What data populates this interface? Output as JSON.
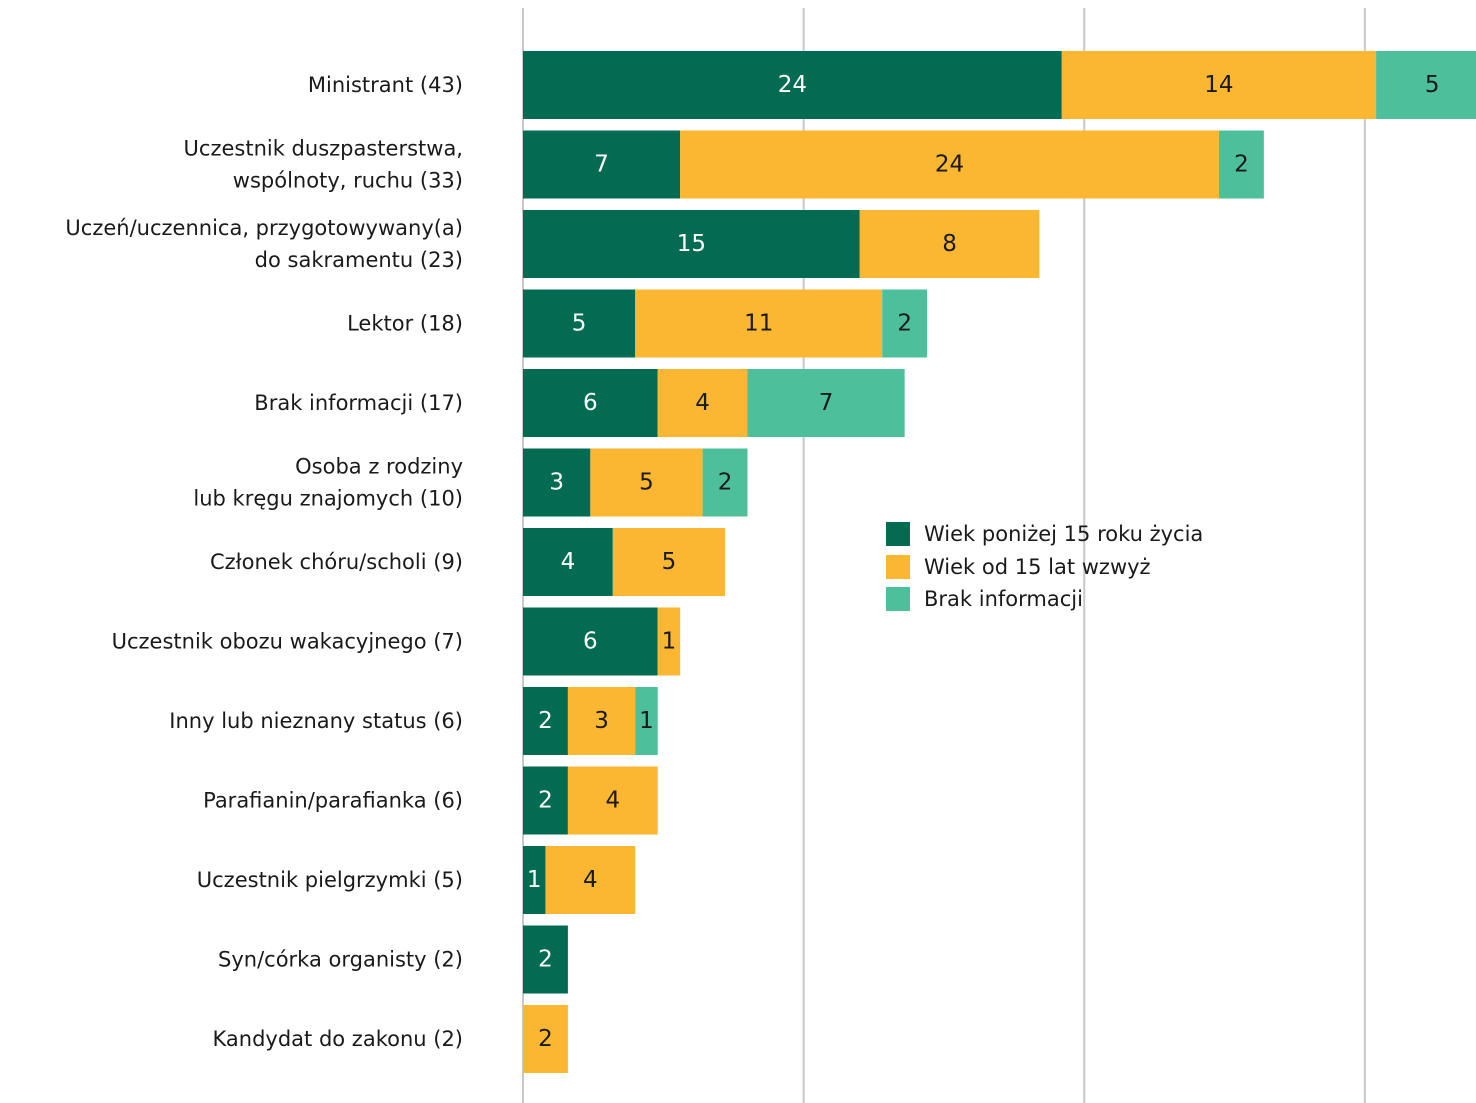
{
  "chart_data": {
    "type": "bar",
    "orientation": "horizontal",
    "stacked": true,
    "categories": [
      "Ministrant (43)",
      "Uczestnik duszpasterstwa,\nwspólnoty, ruchu (33)",
      "Uczeń/uczennica, przygotowywany(a)\ndo sakramentu (23)",
      "Lektor (18)",
      "Brak informacji (17)",
      "Osoba z rodziny\nlub kręgu znajomych (10)",
      "Członek chóru/scholi (9)",
      "Uczestnik obozu wakacyjnego (7)",
      "Inny lub nieznany status (6)",
      "Parafianin/parafianka (6)",
      "Uczestnik pielgrzymki (5)",
      "Syn/córka organisty (2)",
      "Kandydat do zakonu (2)"
    ],
    "series": [
      {
        "name": "Wiek poniżej 15 roku życia",
        "color": "#026b52",
        "label_color": "#ffffff",
        "values": [
          24,
          7,
          15,
          5,
          6,
          3,
          4,
          6,
          2,
          2,
          1,
          2,
          0
        ]
      },
      {
        "name": "Wiek od 15 lat wzwyż",
        "color": "#fbb632",
        "label_color": "#1a1a1a",
        "values": [
          14,
          24,
          8,
          11,
          4,
          5,
          5,
          1,
          3,
          4,
          4,
          0,
          2
        ]
      },
      {
        "name": "Brak informacji",
        "color": "#4dbf9a",
        "label_color": "#1a1a1a",
        "values": [
          5,
          2,
          0,
          2,
          7,
          2,
          0,
          0,
          1,
          0,
          0,
          0,
          0
        ]
      }
    ],
    "xlim": [
      0,
      42.5
    ],
    "x_gridlines": [
      0,
      12.5,
      25,
      37.5
    ],
    "grid": true,
    "legend_position": "center-right",
    "gridline_color": "#c8c8c8"
  }
}
